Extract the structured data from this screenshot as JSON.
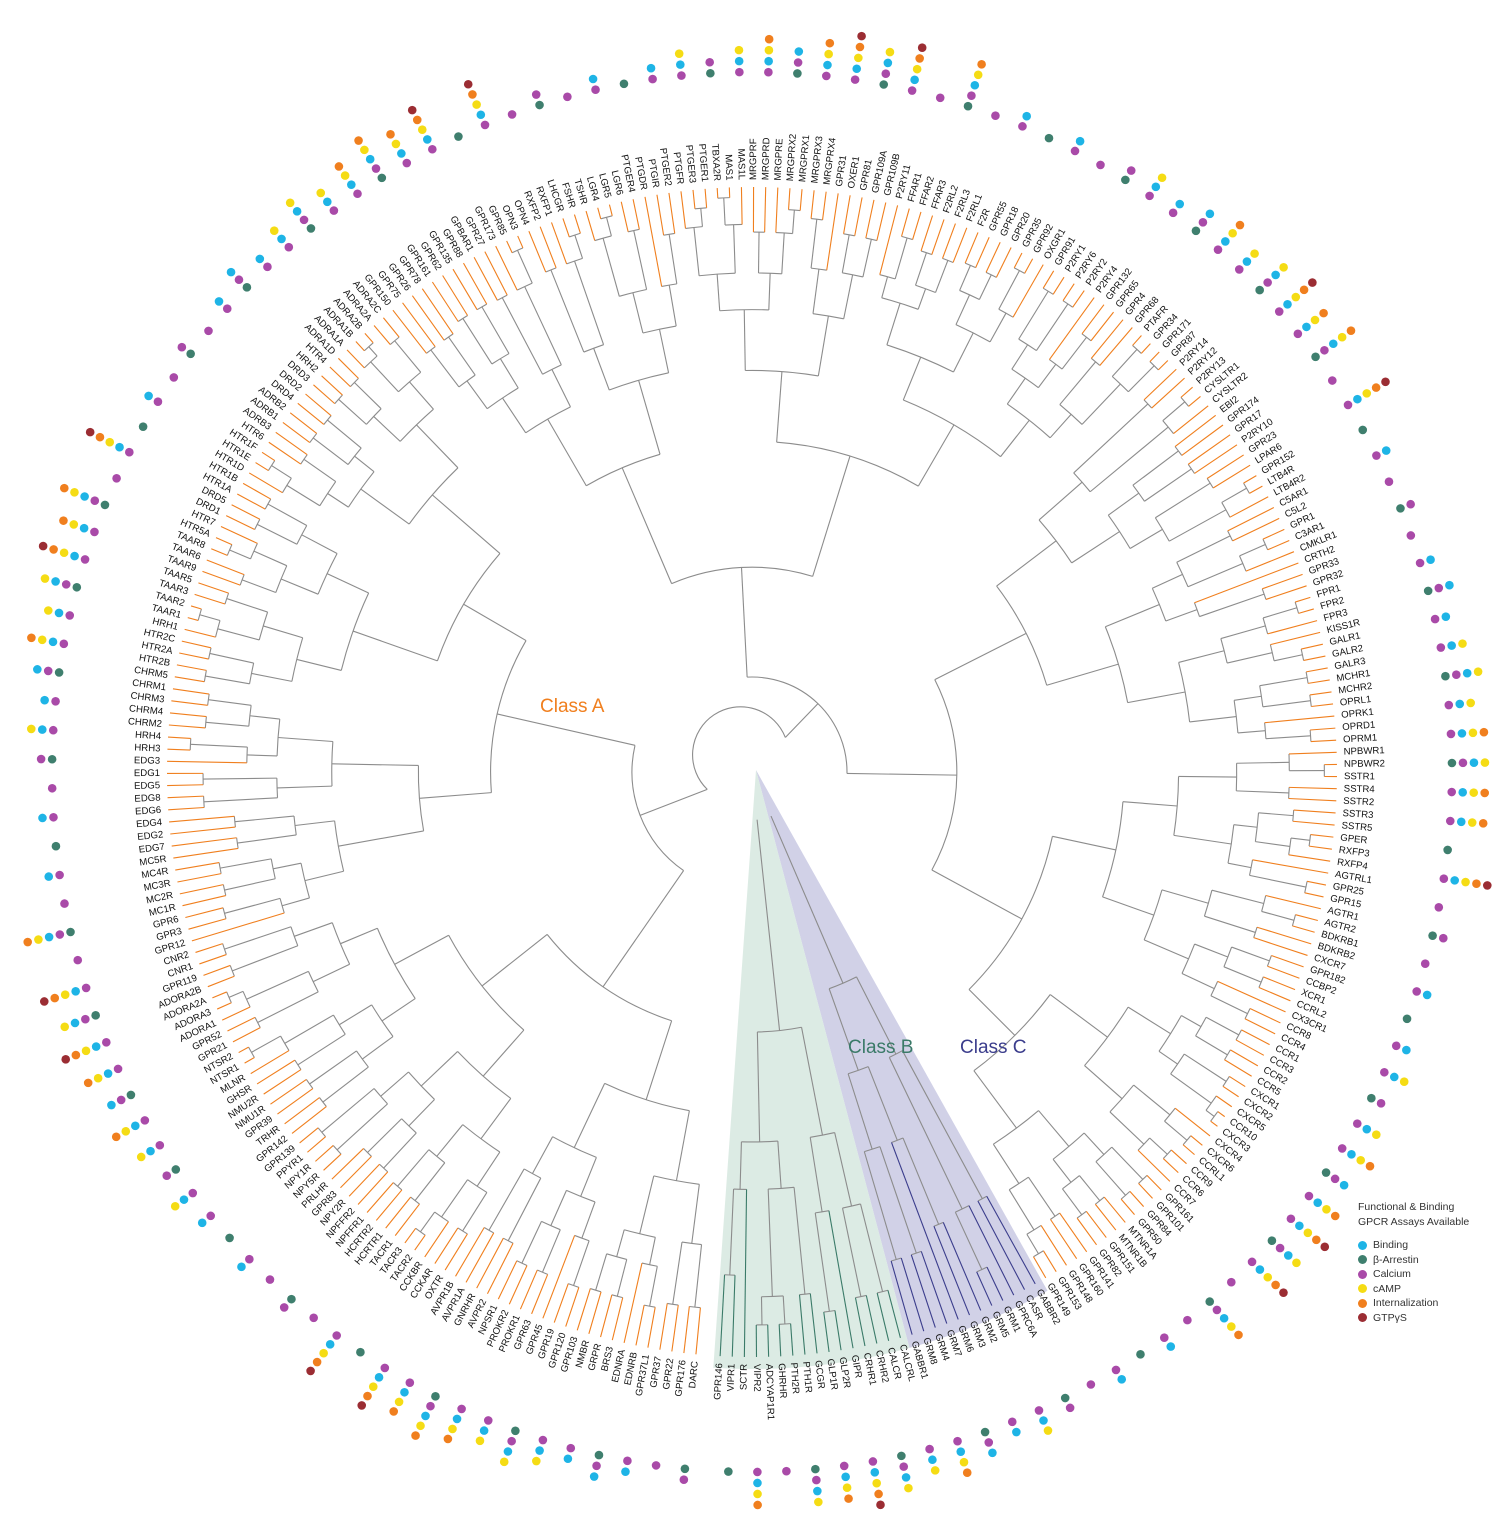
{
  "diagram": {
    "type": "circular-phylogenetic-tree",
    "classes": [
      {
        "key": "A",
        "label": "Class A",
        "color": "#f07f1e"
      },
      {
        "key": "B",
        "label": "Class B",
        "color": "#3a7a68",
        "wedge_color": "#d6e8df"
      },
      {
        "key": "C",
        "label": "Class C",
        "color": "#3b3d8c",
        "wedge_color": "#c9c9e3"
      }
    ],
    "legend": {
      "title_line1": "Functional & Binding",
      "title_line2": "GPCR Assays Available",
      "items": [
        {
          "key": "binding",
          "label": "Binding",
          "color": "#1eb4e6"
        },
        {
          "key": "arrestin",
          "label": "β-Arrestin",
          "color": "#3f7f6e"
        },
        {
          "key": "calcium",
          "label": "Calcium",
          "color": "#a94aa8"
        },
        {
          "key": "camp",
          "label": "cAMP",
          "color": "#f5dc14"
        },
        {
          "key": "internalization",
          "label": "Internalization",
          "color": "#f07f1e"
        },
        {
          "key": "gtps",
          "label": "GTPγS",
          "color": "#9b2d33"
        }
      ]
    },
    "leaves_class_A_1": [
      "DARC",
      "GPR176",
      "GPR22",
      "GPR37",
      "GPR37L1",
      "EDNRB",
      "EDNRA",
      "BRS3",
      "GRPR",
      "NMBR",
      "GPR103",
      "GPR120",
      "GPR19",
      "GPR45",
      "GPR63",
      "PROKR1",
      "PROKR2",
      "NPSR1",
      "AVPR2",
      "GNRHR",
      "AVPR1A",
      "AVPR1B",
      "OXTR",
      "CCKAR",
      "CCKBR",
      "TACR2",
      "TACR3",
      "TACR1",
      "HCRTR1",
      "HCRTR2",
      "NPFFR1",
      "NPFFR2",
      "NPY2R",
      "GPR83",
      "PRLHR",
      "NPY5R",
      "NPY1R",
      "PPYR1",
      "GPR139",
      "GPR142",
      "TRHR",
      "GPR39",
      "NMU1R",
      "NMU2R",
      "GHSR",
      "MLNR",
      "NTSR1",
      "NTSR2",
      "GPR21",
      "GPR52",
      "ADORA1",
      "ADORA3",
      "ADORA2A",
      "ADORA2B",
      "GPR119",
      "CNR1",
      "CNR2",
      "GPR12",
      "GPR3",
      "GPR6",
      "MC1R",
      "MC2R",
      "MC3R",
      "MC4R",
      "MC5R",
      "EDG7",
      "EDG2",
      "EDG4",
      "EDG6",
      "EDG8",
      "EDG5",
      "EDG1",
      "EDG3",
      "HRH3",
      "HRH4",
      "CHRM2",
      "CHRM4",
      "CHRM3",
      "CHRM1",
      "CHRM5",
      "HTR2B",
      "HTR2A",
      "HTR2C",
      "HRH1",
      "TAAR1",
      "TAAR2",
      "TAAR3",
      "TAAR5",
      "TAAR9",
      "TAAR6",
      "TAAR8",
      "HTR5A",
      "HTR7",
      "DRD1",
      "DRD5",
      "HTR1A",
      "HTR1B",
      "HTR1D",
      "HTR1E",
      "HTR1F",
      "HTR6",
      "ADRB3",
      "ADRB1",
      "ADRB2",
      "DRD4",
      "DRD2",
      "DRD3",
      "HRH2",
      "HTR4",
      "ADRA1D",
      "ADRA1A",
      "ADRA1B",
      "ADRA2B",
      "ADRA2A",
      "ADRA2C"
    ],
    "leaves_class_A_2": [
      "GPR150",
      "GPR75",
      "GPR26",
      "GPR78",
      "GPR161",
      "GPR62",
      "GPR135",
      "GPR88",
      "GPBAR1",
      "GPR27",
      "GPR173",
      "GPR85",
      "OPN3",
      "OPN4",
      "RXFP2",
      "RXFP1",
      "LHCGR",
      "FSHR",
      "TSHR",
      "LGR4",
      "LGR5",
      "LGR6",
      "PTGER4",
      "PTGDR",
      "PTGIR",
      "PTGER2",
      "PTGFR",
      "PTGER3",
      "PTGER1",
      "TBXA2R",
      "MAS1",
      "MAS1L",
      "MRGPRF",
      "MRGPRD",
      "MRGPRE",
      "MRGPRX2",
      "MRGPRX1",
      "MRGPRX3",
      "MRGPRX4",
      "GPR31",
      "OXER1",
      "GPR81",
      "GPR109A",
      "GPR109B",
      "P2RY11",
      "FFAR1",
      "FFAR2",
      "FFAR3",
      "F2RL2",
      "F2RL3",
      "F2RL1",
      "F2R",
      "GPR55",
      "GPR18",
      "GPR20",
      "GPR35",
      "GPR92",
      "OXGR1",
      "GPR91",
      "P2RY1",
      "P2RY6",
      "P2RY2",
      "P2RY4",
      "GPR132",
      "GPR65",
      "GPR4",
      "GPR68",
      "PTAFR",
      "GPR34",
      "GPR171",
      "GPR87",
      "P2RY14",
      "P2RY12",
      "P2RY13",
      "CYSLTR1",
      "CYSLTR2",
      "EBI2",
      "GPR174",
      "GPR17",
      "P2RY10",
      "GPR23",
      "LPAR6",
      "GPR152",
      "LTB4R",
      "LTB4R2",
      "C5AR1",
      "C5L2",
      "GPR1",
      "C3AR1",
      "CMKLR1",
      "CRTH2",
      "GPR33",
      "GPR32",
      "FPR1",
      "FPR2",
      "FPR3",
      "KISS1R",
      "GALR1",
      "GALR2",
      "GALR3",
      "MCHR1",
      "MCHR2",
      "OPRL1",
      "OPRK1",
      "OPRD1",
      "OPRM1",
      "NPBWR1",
      "NPBWR2",
      "SSTR1",
      "SSTR4",
      "SSTR2",
      "SSTR3",
      "SSTR5",
      "GPER",
      "RXFP3",
      "RXFP4",
      "AGTRL1",
      "GPR25",
      "GPR15",
      "AGTR1",
      "AGTR2",
      "BDKRB1",
      "BDKRB2",
      "CXCR7",
      "GPR182",
      "CCBP2",
      "XCR1",
      "CCRL2",
      "CX3CR1",
      "CCR8",
      "CCR4",
      "CCR1",
      "CCR3",
      "CCR2",
      "CCR5",
      "CXCR1",
      "CXCR2",
      "CXCR5",
      "CCR10",
      "CXCR3",
      "CXCR4",
      "CXCR6",
      "CCRL1",
      "CCR9",
      "CCR6",
      "CCR7",
      "GPR161",
      "GPR101",
      "GPR84",
      "GPR50",
      "MTNR1A",
      "MTNR1B",
      "GPR151",
      "GPR82",
      "GPR141",
      "GPR160",
      "GPR148",
      "GPR153",
      "GPR149"
    ],
    "leaves_class_C": [
      "GABBR2",
      "CASR",
      "GPRC6A",
      "GRM1",
      "GRM5",
      "GRM2",
      "GRM3",
      "GRM6",
      "GRM7",
      "GRM4",
      "GRM8",
      "GABBR1"
    ],
    "leaves_class_B": [
      "CALCRL",
      "CALCR",
      "CRHR2",
      "CRHR1",
      "GIPR",
      "GLP2R",
      "GLP1R",
      "GCGR",
      "PTH1R",
      "PTH2R",
      "GHRHR",
      "ADCYAP1R1",
      "VIPR2",
      "SCTR",
      "VIPR1"
    ],
    "labels_cut": [
      "GPR146"
    ]
  }
}
